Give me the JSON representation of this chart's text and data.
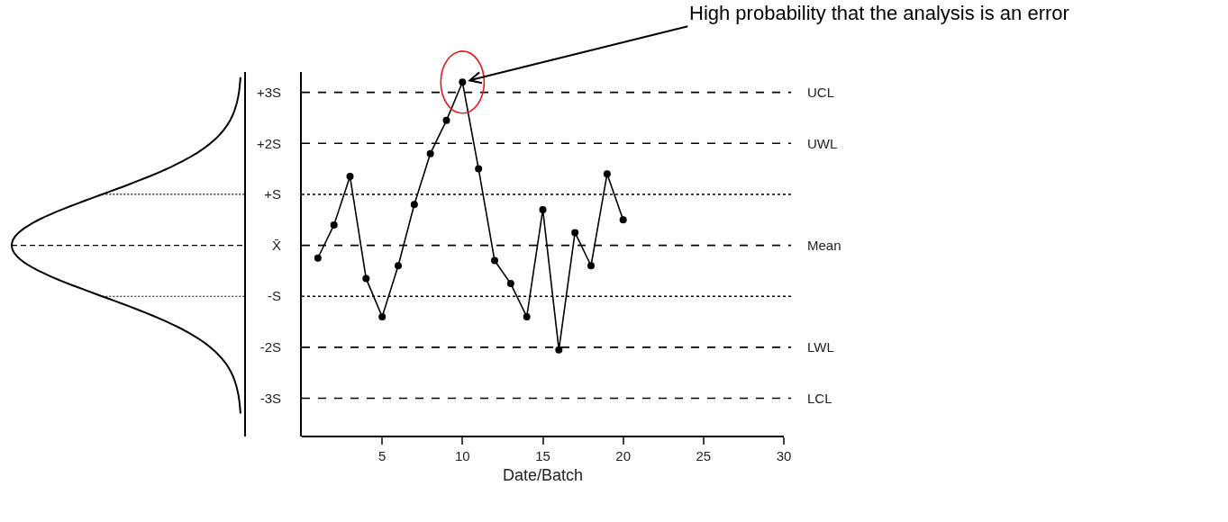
{
  "chart_data": {
    "type": "line",
    "xlabel": "Date/Batch",
    "x": [
      1,
      2,
      3,
      4,
      5,
      6,
      7,
      8,
      9,
      10,
      11,
      12,
      13,
      14,
      15,
      16,
      17,
      18,
      19,
      20
    ],
    "values": [
      -0.25,
      0.4,
      1.35,
      -0.65,
      -1.4,
      -0.4,
      0.8,
      1.8,
      2.45,
      3.2,
      1.5,
      -0.3,
      -0.75,
      -1.4,
      0.7,
      -2.05,
      0.25,
      -0.4,
      1.4,
      0.5
    ],
    "color": "#000000",
    "marker": "circle",
    "line_style": "solid",
    "xlim": [
      0,
      30
    ],
    "xticks": [
      5,
      10,
      15,
      20,
      25,
      30
    ],
    "ylim": [
      -3.75,
      3.4
    ],
    "yticks": [
      {
        "value": 3,
        "label": "+3S"
      },
      {
        "value": 2,
        "label": "+2S"
      },
      {
        "value": 1,
        "label": "+S"
      },
      {
        "value": 0,
        "label": "X̄"
      },
      {
        "value": -1,
        "label": "-S"
      },
      {
        "value": -2,
        "label": "-2S"
      },
      {
        "value": -3,
        "label": "-3S"
      }
    ],
    "ref_lines": [
      {
        "axis": "y",
        "value": 3,
        "label": "UCL",
        "line_style": "dashed"
      },
      {
        "axis": "y",
        "value": 2,
        "label": "UWL",
        "line_style": "dashed"
      },
      {
        "axis": "y",
        "value": 1,
        "label": null,
        "line_style": "dotted"
      },
      {
        "axis": "y",
        "value": 0,
        "label": "Mean",
        "line_style": "dashed"
      },
      {
        "axis": "y",
        "value": -1,
        "label": null,
        "line_style": "dotted"
      },
      {
        "axis": "y",
        "value": -2,
        "label": "LWL",
        "line_style": "dashed"
      },
      {
        "axis": "y",
        "value": -3,
        "label": "LCL",
        "line_style": "dashed"
      }
    ],
    "annotations": [
      {
        "text": "High probability that the analysis is an error",
        "x": 10,
        "y": 3.2
      }
    ],
    "grid": false
  }
}
